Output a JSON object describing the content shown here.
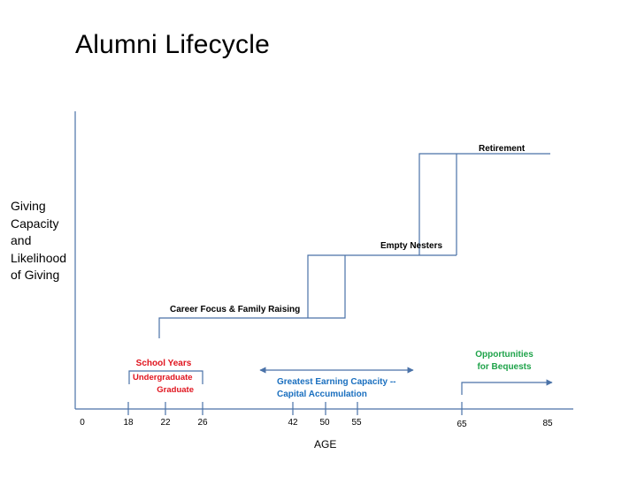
{
  "title": "Alumni Lifecycle",
  "ylabel_lines": [
    "Giving",
    "Capacity",
    "and",
    "Likelihood",
    "of Giving"
  ],
  "xlabel": "AGE",
  "ticks": [
    "0",
    "18",
    "22",
    "26",
    "42",
    "50",
    "55",
    "65",
    "85"
  ],
  "stages": {
    "school_years": "School Years",
    "undergraduate": "Undergraduate",
    "graduate": "Graduate",
    "career": "Career Focus & Family Raising",
    "empty_nesters": "Empty Nesters",
    "retirement": "Retirement",
    "earning_line1": "Greatest Earning Capacity  --",
    "earning_line2": "Capital Accumulation",
    "bequests_line1": "Opportunities",
    "bequests_line2": "for Bequests"
  },
  "colors": {
    "line": "#4a72a8",
    "school": "#e0141e",
    "earning": "#1a6fbf",
    "bequests": "#1fa34a",
    "text": "#000000"
  }
}
